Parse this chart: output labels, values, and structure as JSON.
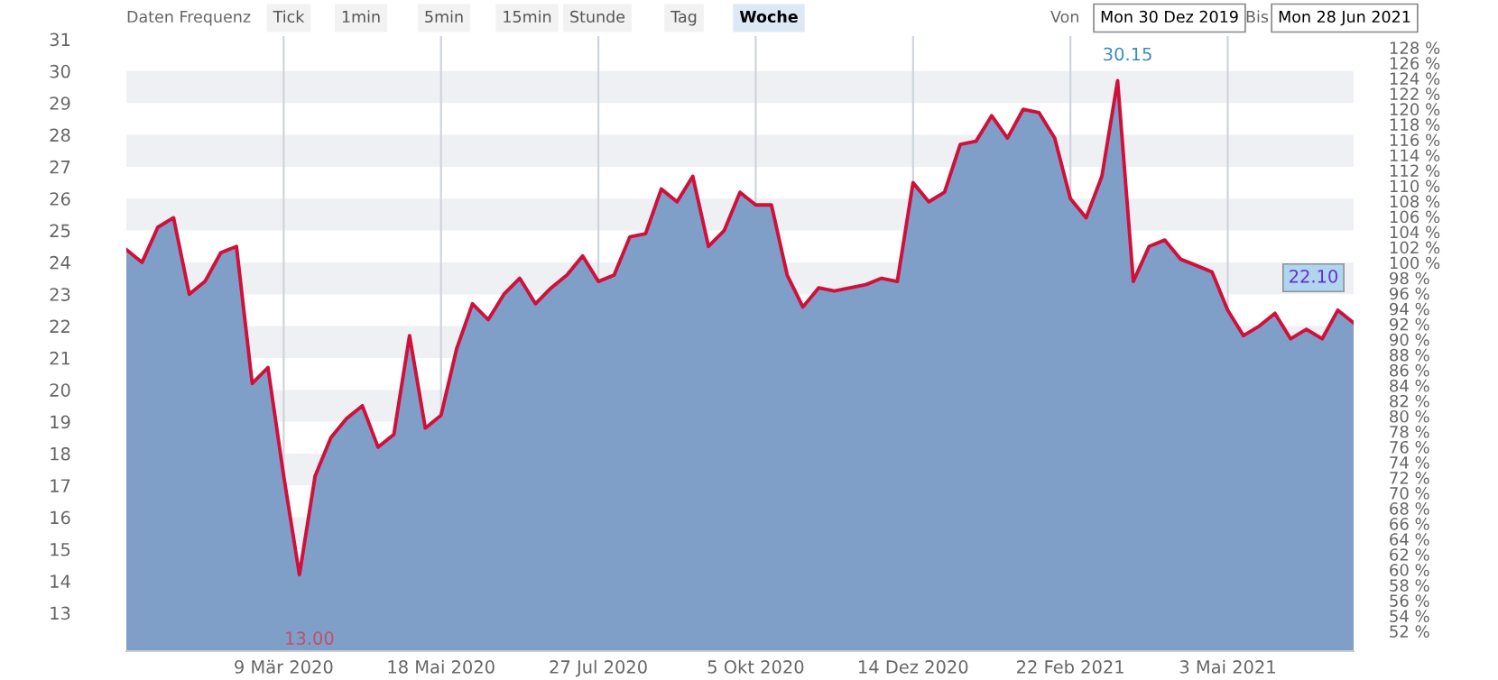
{
  "chart_data": {
    "type": "area",
    "annotations": [
      "Daten Frequenz",
      "Tick",
      "1min",
      "5min",
      "15min",
      "Stunde",
      "Tag",
      "Woche",
      "Von",
      "Mon 30 Dez 2019",
      "Bis",
      "Mon 28 Jun 2021",
      "13.00",
      "30.15",
      {
        "text": "22.10",
        "x": "2021-06-28",
        "y": 22.1
      }
    ],
    "x": [
      "2019-12-30",
      "2020-01-06",
      "2020-01-13",
      "2020-01-20",
      "2020-01-27",
      "2020-02-03",
      "2020-02-10",
      "2020-02-17",
      "2020-02-24",
      "2020-03-02",
      "2020-03-09",
      "2020-03-16",
      "2020-03-23",
      "2020-03-30",
      "2020-04-06",
      "2020-04-13",
      "2020-04-20",
      "2020-04-27",
      "2020-05-04",
      "2020-05-11",
      "2020-05-18",
      "2020-05-25",
      "2020-06-01",
      "2020-06-08",
      "2020-06-15",
      "2020-06-22",
      "2020-06-29",
      "2020-07-06",
      "2020-07-13",
      "2020-07-20",
      "2020-07-27",
      "2020-08-03",
      "2020-08-10",
      "2020-08-17",
      "2020-08-24",
      "2020-08-31",
      "2020-09-07",
      "2020-09-14",
      "2020-09-21",
      "2020-09-28",
      "2020-10-05",
      "2020-10-12",
      "2020-10-19",
      "2020-10-26",
      "2020-11-02",
      "2020-11-09",
      "2020-11-16",
      "2020-11-23",
      "2020-11-30",
      "2020-12-07",
      "2020-12-14",
      "2020-12-21",
      "2020-12-28",
      "2021-01-04",
      "2021-01-11",
      "2021-01-18",
      "2021-01-25",
      "2021-02-01",
      "2021-02-08",
      "2021-02-15",
      "2021-02-22",
      "2021-03-01",
      "2021-03-08",
      "2021-03-15",
      "2021-03-22",
      "2021-03-29",
      "2021-04-05",
      "2021-04-12",
      "2021-04-19",
      "2021-04-26",
      "2021-05-03",
      "2021-05-10",
      "2021-05-17",
      "2021-05-24",
      "2021-05-31",
      "2021-06-07",
      "2021-06-14",
      "2021-06-21",
      "2021-06-28"
    ],
    "series": [
      {
        "color": "#7f9fc8",
        "values": [
          24.4,
          24.0,
          25.1,
          25.4,
          23.0,
          23.4,
          24.3,
          24.5,
          20.2,
          20.7,
          17.3,
          14.2,
          17.3,
          18.5,
          19.1,
          19.5,
          18.2,
          18.6,
          21.7,
          18.8,
          19.2,
          21.3,
          22.7,
          22.2,
          23.0,
          23.5,
          22.7,
          23.2,
          23.6,
          24.2,
          23.4,
          23.6,
          24.8,
          24.9,
          26.3,
          25.9,
          26.7,
          24.5,
          25.0,
          26.2,
          25.8,
          25.8,
          23.6,
          22.6,
          23.2,
          23.1,
          23.2,
          23.3,
          23.5,
          23.4,
          26.5,
          25.9,
          26.2,
          27.7,
          27.8,
          28.6,
          27.9,
          28.8,
          28.7,
          27.9,
          26.0,
          25.4,
          26.7,
          29.7,
          23.4,
          24.5,
          24.7,
          24.1,
          23.9,
          23.7,
          22.5,
          21.7,
          22.0,
          22.4,
          21.6,
          21.9,
          21.6,
          22.5,
          22.1
        ]
      },
      {
        "type": "line",
        "color": "#d0103a",
        "values": [
          24.4,
          24.0,
          25.1,
          25.4,
          23.0,
          23.4,
          24.3,
          24.5,
          20.2,
          20.7,
          17.3,
          14.2,
          17.3,
          18.5,
          19.1,
          19.5,
          18.2,
          18.6,
          21.7,
          18.8,
          19.2,
          21.3,
          22.7,
          22.2,
          23.0,
          23.5,
          22.7,
          23.2,
          23.6,
          24.2,
          23.4,
          23.6,
          24.8,
          24.9,
          26.3,
          25.9,
          26.7,
          24.5,
          25.0,
          26.2,
          25.8,
          25.8,
          23.6,
          22.6,
          23.2,
          23.1,
          23.2,
          23.3,
          23.5,
          23.4,
          26.5,
          25.9,
          26.2,
          27.7,
          27.8,
          28.6,
          27.9,
          28.8,
          28.7,
          27.9,
          26.0,
          25.4,
          26.7,
          29.7,
          23.4,
          24.5,
          24.7,
          24.1,
          23.9,
          23.7,
          22.5,
          21.7,
          22.0,
          22.4,
          21.6,
          21.9,
          21.6,
          22.5,
          22.1
        ]
      }
    ],
    "xlim": [
      "2019-12-30",
      "2021-06-28"
    ],
    "xticks": [
      {
        "value": "2020-03-09",
        "label": "9 Mär 2020"
      },
      {
        "value": "2020-05-18",
        "label": "18 Mai 2020"
      },
      {
        "value": "2020-07-27",
        "label": "27 Jul 2020"
      },
      {
        "value": "2020-10-05",
        "label": "5 Okt 2020"
      },
      {
        "value": "2020-12-14",
        "label": "14 Dez 2020"
      },
      {
        "value": "2021-02-22",
        "label": "22 Feb 2021"
      },
      {
        "value": "2021-05-03",
        "label": "3 Mai 2021"
      }
    ],
    "ylim": [
      11.8,
      31.1
    ],
    "yticks": [
      13,
      14,
      15,
      16,
      17,
      18,
      19,
      20,
      21,
      22,
      23,
      24,
      25,
      26,
      27,
      28,
      29,
      30,
      31
    ],
    "y2lim": [
      49.4,
      129.5
    ],
    "y2ticks": [
      {
        "value": 52,
        "label": "52 %"
      },
      {
        "value": 54,
        "label": "54 %"
      },
      {
        "value": 56,
        "label": "56 %"
      },
      {
        "value": 58,
        "label": "58 %"
      },
      {
        "value": 60,
        "label": "60 %"
      },
      {
        "value": 62,
        "label": "62 %"
      },
      {
        "value": 64,
        "label": "64 %"
      },
      {
        "value": 66,
        "label": "66 %"
      },
      {
        "value": 68,
        "label": "68 %"
      },
      {
        "value": 70,
        "label": "70 %"
      },
      {
        "value": 72,
        "label": "72 %"
      },
      {
        "value": 74,
        "label": "74 %"
      },
      {
        "value": 76,
        "label": "76 %"
      },
      {
        "value": 78,
        "label": "78 %"
      },
      {
        "value": 80,
        "label": "80 %"
      },
      {
        "value": 82,
        "label": "82 %"
      },
      {
        "value": 84,
        "label": "84 %"
      },
      {
        "value": 86,
        "label": "86 %"
      },
      {
        "value": 88,
        "label": "88 %"
      },
      {
        "value": 90,
        "label": "90 %"
      },
      {
        "value": 92,
        "label": "92 %"
      },
      {
        "value": 94,
        "label": "94 %"
      },
      {
        "value": 96,
        "label": "96 %"
      },
      {
        "value": 98,
        "label": "98 %"
      },
      {
        "value": 100,
        "label": "100 %"
      },
      {
        "value": 102,
        "label": "102 %"
      },
      {
        "value": 104,
        "label": "104 %"
      },
      {
        "value": 106,
        "label": "106 %"
      },
      {
        "value": 108,
        "label": "108 %"
      },
      {
        "value": 110,
        "label": "110 %"
      },
      {
        "value": 112,
        "label": "112 %"
      },
      {
        "value": 114,
        "label": "114 %"
      },
      {
        "value": 116,
        "label": "116 %"
      },
      {
        "value": 118,
        "label": "118 %"
      },
      {
        "value": 120,
        "label": "120 %"
      },
      {
        "value": 122,
        "label": "122 %"
      },
      {
        "value": 124,
        "label": "124 %"
      },
      {
        "value": 126,
        "label": "126 %"
      },
      {
        "value": 128,
        "label": "128 %"
      }
    ],
    "grid": true
  }
}
